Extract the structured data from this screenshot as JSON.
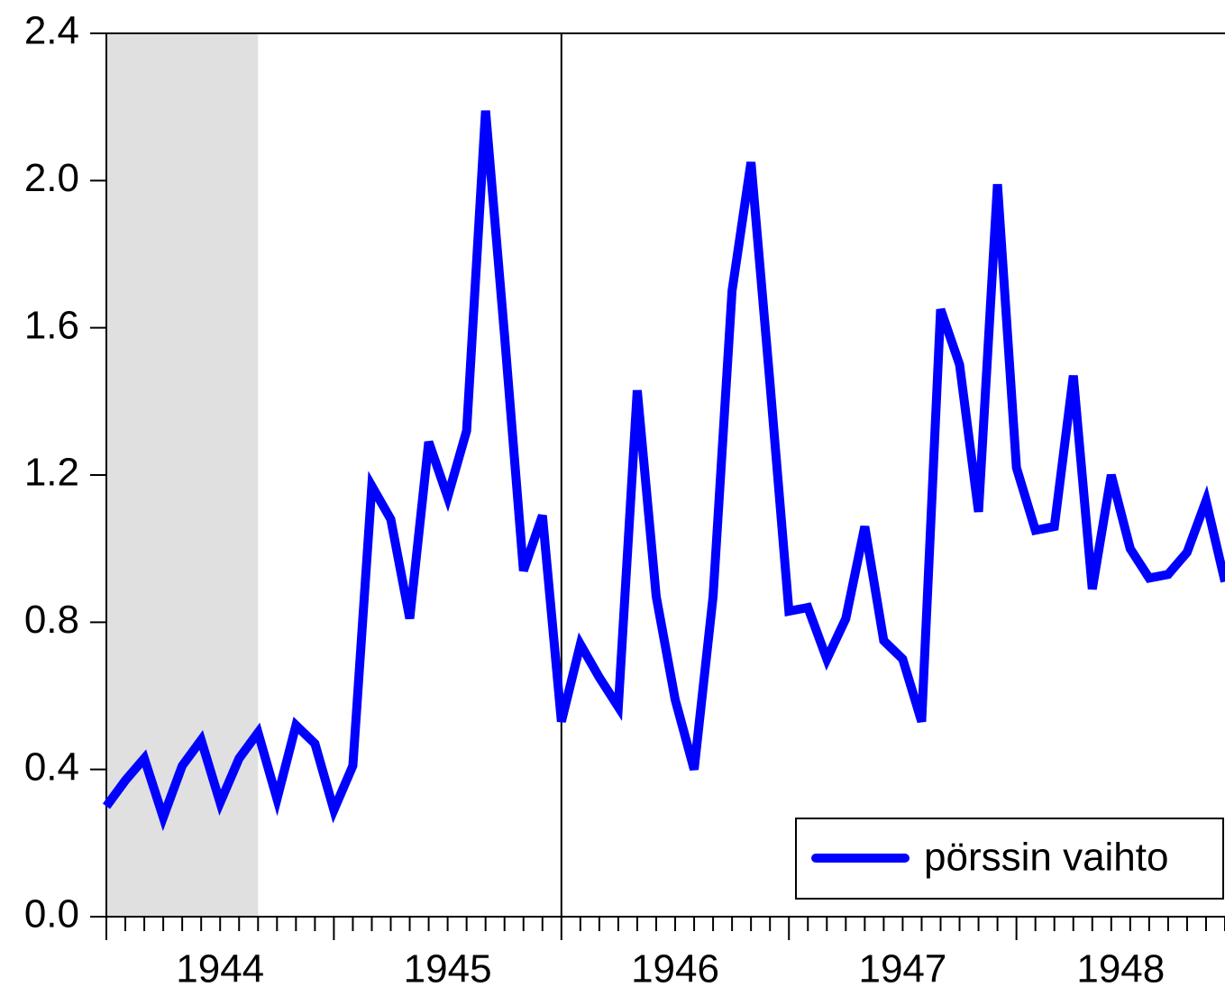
{
  "chart_data": {
    "type": "line",
    "years": [
      "1944",
      "1945",
      "1946",
      "1947",
      "1948"
    ],
    "periods_per_year": 12,
    "series": [
      {
        "name": "pörssin vaihto",
        "color": "#0000ff",
        "values": [
          0.3,
          0.37,
          0.43,
          0.27,
          0.41,
          0.48,
          0.31,
          0.43,
          0.5,
          0.32,
          0.52,
          0.47,
          0.29,
          0.41,
          1.17,
          1.08,
          0.81,
          1.29,
          1.14,
          1.32,
          2.19,
          1.58,
          0.94,
          1.09,
          0.53,
          0.74,
          0.65,
          0.57,
          1.43,
          0.87,
          0.59,
          0.4,
          0.87,
          1.7,
          2.05,
          1.45,
          0.83,
          0.84,
          0.7,
          0.81,
          1.06,
          0.75,
          0.7,
          0.53,
          1.65,
          1.5,
          1.1,
          1.99,
          1.22,
          1.05,
          1.06,
          1.47,
          0.89,
          1.2,
          1.0,
          0.92,
          0.93,
          0.99,
          1.13,
          0.91
        ]
      }
    ],
    "ylim": [
      0,
      2.4
    ],
    "yticks": [
      {
        "value": 0,
        "label": "0.0"
      },
      {
        "value": 0.4,
        "label": "0.4"
      },
      {
        "value": 0.8,
        "label": "0.8"
      },
      {
        "value": 1.2,
        "label": "1.2"
      },
      {
        "value": 1.6,
        "label": "1.6"
      },
      {
        "value": 2.0,
        "label": "2.0"
      },
      {
        "value": 2.4,
        "label": "2.4"
      }
    ],
    "shaded_periods": [
      0,
      8
    ],
    "vertical_line_period": 24,
    "legend": "lower right"
  }
}
